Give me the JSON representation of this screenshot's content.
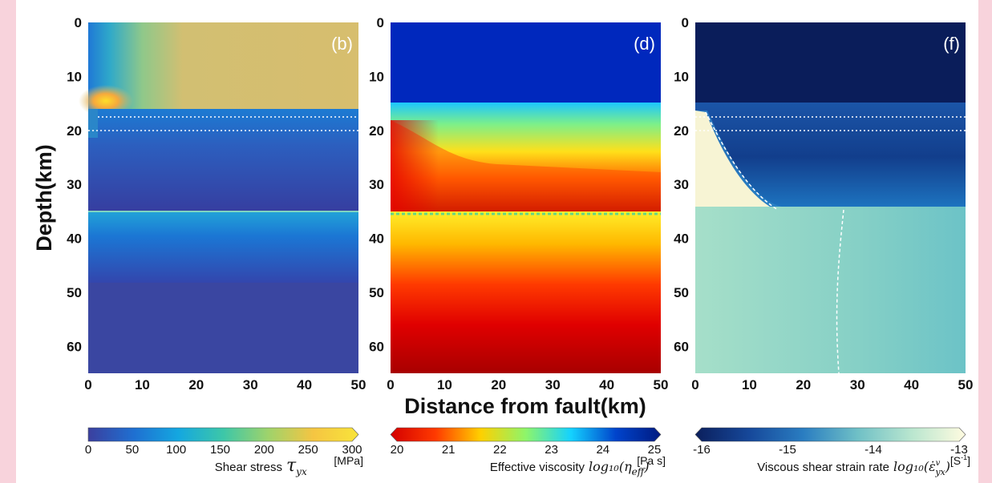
{
  "chart_data": {
    "type": "heatmap",
    "ylabel": "Depth(km)",
    "xlabel": "Distance from fault(km)",
    "x_ticks": [
      "0",
      "10",
      "20",
      "30",
      "40",
      "50"
    ],
    "y_ticks": [
      "0",
      "10",
      "20",
      "30",
      "40",
      "50",
      "60"
    ],
    "xlim": [
      0,
      50
    ],
    "ylim": [
      65,
      0
    ],
    "panels": [
      {
        "label": "(b)",
        "quantity": "Shear stress",
        "colorbar": {
          "label": "Shear stress",
          "symbol": "τ",
          "symbol_sub": "yx",
          "unit": "[MPa]",
          "ticks": [
            "0",
            "50",
            "100",
            "150",
            "200",
            "250",
            "300"
          ],
          "range": [
            0,
            300
          ],
          "colors": [
            "#3b3f9e",
            "#1f6fd1",
            "#14a7e0",
            "#3dc7a8",
            "#9fd36b",
            "#f5c542",
            "#f8e43a"
          ]
        },
        "layers": [
          {
            "from_depth": 0,
            "to_depth": 16,
            "value": 235
          },
          {
            "from_depth": 16,
            "to_depth": 35,
            "value": 40
          },
          {
            "from_depth": 35,
            "to_depth": 48,
            "value": 50
          },
          {
            "from_depth": 48,
            "to_depth": 65,
            "value": 25
          }
        ]
      },
      {
        "label": "(d)",
        "quantity": "Effective viscosity",
        "colorbar": {
          "label": "Effective viscosity",
          "symbol": "log₁₀(η",
          "symbol_sub": "eff",
          "symbol_end": ")",
          "unit": "[Pa s]",
          "ticks": [
            "20",
            "21",
            "22",
            "23",
            "24",
            "25"
          ],
          "range": [
            20,
            25
          ],
          "colors": [
            "#d40000",
            "#ff3a00",
            "#ffd000",
            "#8ef56a",
            "#14d2ff",
            "#0044cc",
            "#001a80"
          ]
        },
        "layers": [
          {
            "from_depth": 0,
            "to_depth": 15,
            "value": 25
          },
          {
            "from_depth": 15,
            "to_depth": 35,
            "value": 22.5
          },
          {
            "from_depth": 35,
            "to_depth": 50,
            "value": 21.5
          },
          {
            "from_depth": 50,
            "to_depth": 65,
            "value": 20.3
          }
        ]
      },
      {
        "label": "(f)",
        "quantity": "Viscous shear strain rate",
        "colorbar": {
          "label": "Viscous shear strain rate",
          "symbol": "log₁₀(ε̇",
          "symbol_sub": "yx",
          "symbol_sup": "v",
          "symbol_end": ")",
          "unit": "[S",
          "unit_sup": "-1",
          "unit_end": "]",
          "ticks": [
            "-16",
            "-15",
            "-14",
            "-13"
          ],
          "range": [
            -16,
            -13
          ],
          "colors": [
            "#0b1f5c",
            "#16489a",
            "#2a7dc1",
            "#6fc0c6",
            "#b9e6cf",
            "#fffbe0"
          ]
        },
        "layers": [
          {
            "from_depth": 0,
            "to_depth": 15,
            "value": -16
          },
          {
            "from_depth": 15,
            "to_depth": 35,
            "value": -15.3
          },
          {
            "from_depth": 35,
            "to_depth": 65,
            "value": -14.4
          }
        ]
      }
    ]
  }
}
